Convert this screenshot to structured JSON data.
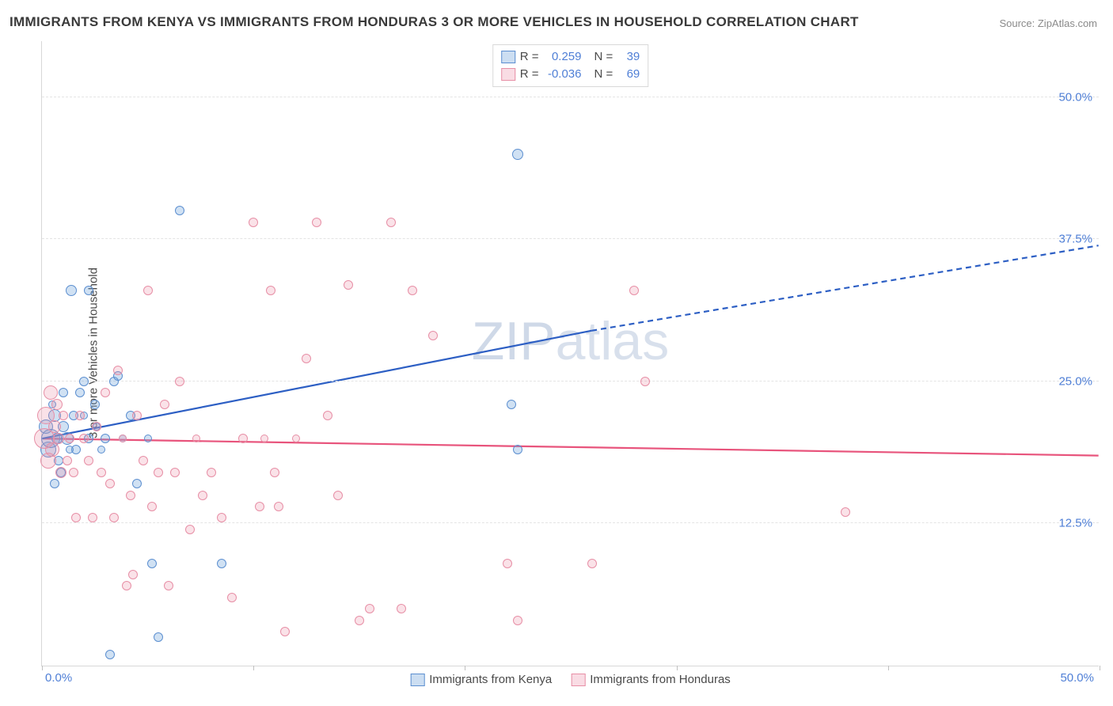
{
  "title": "IMMIGRANTS FROM KENYA VS IMMIGRANTS FROM HONDURAS 3 OR MORE VEHICLES IN HOUSEHOLD CORRELATION CHART",
  "source": "Source: ZipAtlas.com",
  "ylabel": "3 or more Vehicles in Household",
  "watermark_a": "ZIP",
  "watermark_b": "atlas",
  "chart": {
    "type": "scatter",
    "xlim": [
      0,
      50
    ],
    "ylim": [
      0,
      55
    ],
    "xticks": [
      0,
      10,
      20,
      30,
      40,
      50
    ],
    "xtick_labels": {
      "0": "0.0%",
      "50": "50.0%"
    },
    "yticks": [
      12.5,
      25.0,
      37.5,
      50.0
    ],
    "ytick_labels": [
      "12.5%",
      "25.0%",
      "37.5%",
      "50.0%"
    ],
    "grid_dashed": true,
    "background_color": "#ffffff",
    "grid_color": "#e4e4e4",
    "axis_label_color": "#4f7fd6",
    "series": [
      {
        "name": "Immigrants from Kenya",
        "color_fill": "rgba(109,161,218,0.32)",
        "color_stroke": "#5c8fd0",
        "marker_radius_range": [
          5,
          12
        ],
        "R": "0.259",
        "N": "39",
        "trend": {
          "x1": 0,
          "y1": 20,
          "x2": 26,
          "y2": 29.5,
          "dash_x2": 50,
          "dash_y2": 37,
          "color": "#2d5fc4",
          "width": 2
        },
        "points": [
          {
            "x": 0.2,
            "y": 21,
            "r": 9
          },
          {
            "x": 0.3,
            "y": 19,
            "r": 10
          },
          {
            "x": 0.4,
            "y": 20,
            "r": 12
          },
          {
            "x": 0.6,
            "y": 22,
            "r": 8
          },
          {
            "x": 0.7,
            "y": 20,
            "r": 7
          },
          {
            "x": 0.8,
            "y": 18,
            "r": 6
          },
          {
            "x": 0.9,
            "y": 17,
            "r": 6
          },
          {
            "x": 1.0,
            "y": 21,
            "r": 7
          },
          {
            "x": 1.2,
            "y": 20,
            "r": 8
          },
          {
            "x": 1.4,
            "y": 33,
            "r": 7
          },
          {
            "x": 1.5,
            "y": 22,
            "r": 6
          },
          {
            "x": 1.6,
            "y": 19,
            "r": 6
          },
          {
            "x": 1.8,
            "y": 24,
            "r": 6
          },
          {
            "x": 2.0,
            "y": 25,
            "r": 6
          },
          {
            "x": 2.2,
            "y": 20,
            "r": 6
          },
          {
            "x": 2.2,
            "y": 33,
            "r": 6
          },
          {
            "x": 2.5,
            "y": 23,
            "r": 6
          },
          {
            "x": 2.6,
            "y": 21,
            "r": 5
          },
          {
            "x": 2.8,
            "y": 19,
            "r": 5
          },
          {
            "x": 3.0,
            "y": 20,
            "r": 6
          },
          {
            "x": 3.4,
            "y": 25,
            "r": 6
          },
          {
            "x": 3.6,
            "y": 25.5,
            "r": 6
          },
          {
            "x": 3.8,
            "y": 20,
            "r": 5
          },
          {
            "x": 4.2,
            "y": 22,
            "r": 6
          },
          {
            "x": 4.5,
            "y": 16,
            "r": 6
          },
          {
            "x": 5.0,
            "y": 20,
            "r": 5
          },
          {
            "x": 5.2,
            "y": 9,
            "r": 6
          },
          {
            "x": 3.2,
            "y": 1,
            "r": 6
          },
          {
            "x": 5.5,
            "y": 2.5,
            "r": 6
          },
          {
            "x": 0.6,
            "y": 16,
            "r": 6
          },
          {
            "x": 6.5,
            "y": 40,
            "r": 6
          },
          {
            "x": 8.5,
            "y": 9,
            "r": 6
          },
          {
            "x": 22.5,
            "y": 45,
            "r": 7
          },
          {
            "x": 22.5,
            "y": 19,
            "r": 6
          },
          {
            "x": 22.2,
            "y": 23,
            "r": 6
          },
          {
            "x": 1.0,
            "y": 24,
            "r": 6
          },
          {
            "x": 1.3,
            "y": 19,
            "r": 5
          },
          {
            "x": 0.5,
            "y": 23,
            "r": 5
          },
          {
            "x": 2.0,
            "y": 22,
            "r": 5
          }
        ]
      },
      {
        "name": "Immigrants from Honduras",
        "color_fill": "rgba(235,140,165,0.25)",
        "color_stroke": "#e78fa6",
        "marker_radius_range": [
          5,
          13
        ],
        "R": "-0.036",
        "N": "69",
        "trend": {
          "x1": 0,
          "y1": 20,
          "x2": 50,
          "y2": 18.5,
          "color": "#e8547c",
          "width": 2
        },
        "points": [
          {
            "x": 0.1,
            "y": 20,
            "r": 13
          },
          {
            "x": 0.2,
            "y": 22,
            "r": 11
          },
          {
            "x": 0.3,
            "y": 18,
            "r": 10
          },
          {
            "x": 0.4,
            "y": 24,
            "r": 9
          },
          {
            "x": 0.5,
            "y": 19,
            "r": 9
          },
          {
            "x": 0.6,
            "y": 21,
            "r": 8
          },
          {
            "x": 0.7,
            "y": 23,
            "r": 7
          },
          {
            "x": 0.8,
            "y": 20,
            "r": 7
          },
          {
            "x": 0.9,
            "y": 17,
            "r": 7
          },
          {
            "x": 1.0,
            "y": 22,
            "r": 6
          },
          {
            "x": 1.2,
            "y": 18,
            "r": 6
          },
          {
            "x": 1.3,
            "y": 20,
            "r": 6
          },
          {
            "x": 1.5,
            "y": 17,
            "r": 6
          },
          {
            "x": 1.6,
            "y": 13,
            "r": 6
          },
          {
            "x": 1.8,
            "y": 22,
            "r": 6
          },
          {
            "x": 2.0,
            "y": 20,
            "r": 6
          },
          {
            "x": 2.2,
            "y": 18,
            "r": 6
          },
          {
            "x": 2.4,
            "y": 13,
            "r": 6
          },
          {
            "x": 2.6,
            "y": 21,
            "r": 6
          },
          {
            "x": 2.8,
            "y": 17,
            "r": 6
          },
          {
            "x": 3.0,
            "y": 24,
            "r": 6
          },
          {
            "x": 3.2,
            "y": 16,
            "r": 6
          },
          {
            "x": 3.4,
            "y": 13,
            "r": 6
          },
          {
            "x": 3.6,
            "y": 26,
            "r": 6
          },
          {
            "x": 3.8,
            "y": 20,
            "r": 5
          },
          {
            "x": 4.0,
            "y": 7,
            "r": 6
          },
          {
            "x": 4.2,
            "y": 15,
            "r": 6
          },
          {
            "x": 4.5,
            "y": 22,
            "r": 6
          },
          {
            "x": 4.8,
            "y": 18,
            "r": 6
          },
          {
            "x": 5.0,
            "y": 33,
            "r": 6
          },
          {
            "x": 5.2,
            "y": 14,
            "r": 6
          },
          {
            "x": 5.5,
            "y": 17,
            "r": 6
          },
          {
            "x": 5.8,
            "y": 23,
            "r": 6
          },
          {
            "x": 6.0,
            "y": 7,
            "r": 6
          },
          {
            "x": 6.3,
            "y": 17,
            "r": 6
          },
          {
            "x": 6.5,
            "y": 25,
            "r": 6
          },
          {
            "x": 7.0,
            "y": 12,
            "r": 6
          },
          {
            "x": 7.3,
            "y": 20,
            "r": 5
          },
          {
            "x": 7.6,
            "y": 15,
            "r": 6
          },
          {
            "x": 8.0,
            "y": 17,
            "r": 6
          },
          {
            "x": 8.5,
            "y": 13,
            "r": 6
          },
          {
            "x": 9.0,
            "y": 6,
            "r": 6
          },
          {
            "x": 9.5,
            "y": 20,
            "r": 6
          },
          {
            "x": 10.0,
            "y": 39,
            "r": 6
          },
          {
            "x": 10.3,
            "y": 14,
            "r": 6
          },
          {
            "x": 10.5,
            "y": 20,
            "r": 5
          },
          {
            "x": 10.8,
            "y": 33,
            "r": 6
          },
          {
            "x": 11.0,
            "y": 17,
            "r": 6
          },
          {
            "x": 11.2,
            "y": 14,
            "r": 6
          },
          {
            "x": 11.5,
            "y": 3,
            "r": 6
          },
          {
            "x": 12.0,
            "y": 20,
            "r": 5
          },
          {
            "x": 12.5,
            "y": 27,
            "r": 6
          },
          {
            "x": 13.0,
            "y": 39,
            "r": 6
          },
          {
            "x": 13.5,
            "y": 22,
            "r": 6
          },
          {
            "x": 14.0,
            "y": 15,
            "r": 6
          },
          {
            "x": 14.5,
            "y": 33.5,
            "r": 6
          },
          {
            "x": 15.0,
            "y": 4,
            "r": 6
          },
          {
            "x": 15.5,
            "y": 5,
            "r": 6
          },
          {
            "x": 16.5,
            "y": 39,
            "r": 6
          },
          {
            "x": 17.0,
            "y": 5,
            "r": 6
          },
          {
            "x": 17.5,
            "y": 33,
            "r": 6
          },
          {
            "x": 18.5,
            "y": 29,
            "r": 6
          },
          {
            "x": 22.0,
            "y": 9,
            "r": 6
          },
          {
            "x": 22.5,
            "y": 4,
            "r": 6
          },
          {
            "x": 26.0,
            "y": 9,
            "r": 6
          },
          {
            "x": 28.0,
            "y": 33,
            "r": 6
          },
          {
            "x": 28.5,
            "y": 25,
            "r": 6
          },
          {
            "x": 38.0,
            "y": 13.5,
            "r": 6
          },
          {
            "x": 4.3,
            "y": 8,
            "r": 6
          }
        ]
      }
    ],
    "legend_top": {
      "rows": [
        {
          "swatch": "blue",
          "R_label": "R =",
          "R": "0.259",
          "N_label": "N =",
          "N": "39"
        },
        {
          "swatch": "pink",
          "R_label": "R =",
          "R": "-0.036",
          "N_label": "N =",
          "N": "69"
        }
      ]
    },
    "legend_bottom": [
      {
        "swatch": "blue",
        "label": "Immigrants from Kenya"
      },
      {
        "swatch": "pink",
        "label": "Immigrants from Honduras"
      }
    ]
  }
}
